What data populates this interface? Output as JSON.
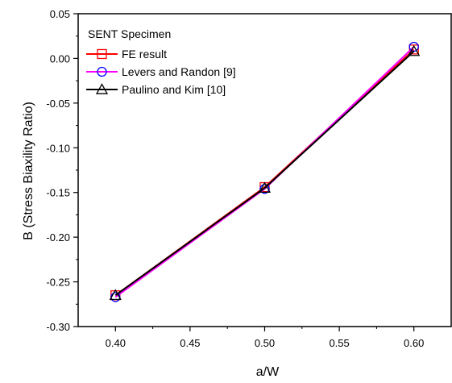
{
  "chart_data": {
    "type": "line",
    "title": "",
    "xlabel": "a/W",
    "ylabel": "B (Stress Biaxility Ratio)",
    "xlim": [
      0.375,
      0.625
    ],
    "ylim": [
      -0.3,
      0.05
    ],
    "xticks": [
      0.4,
      0.45,
      0.5,
      0.55,
      0.6
    ],
    "xtick_labels": [
      "0.40",
      "0.45",
      "0.50",
      "0.55",
      "0.60"
    ],
    "yticks": [
      0.05,
      0.0,
      -0.05,
      -0.1,
      -0.15,
      -0.2,
      -0.25,
      -0.3
    ],
    "ytick_labels": [
      "0.05",
      "0.00",
      "-0.05",
      "-0.10",
      "-0.15",
      "-0.20",
      "-0.25",
      "-0.30"
    ],
    "grid": false,
    "legend": {
      "title": "SENT Specimen",
      "position": "top-left"
    },
    "x": [
      0.4,
      0.5,
      0.6
    ],
    "series": [
      {
        "name": "FE result",
        "values": [
          -0.265,
          -0.144,
          0.01
        ],
        "color": "#ff0000",
        "marker": "square"
      },
      {
        "name": "Levers and Randon [9]",
        "values": [
          -0.267,
          -0.146,
          0.013
        ],
        "color": "#ff00ff",
        "marker": "circle",
        "marker_color": "#0000ff"
      },
      {
        "name": "Paulino and Kim [10]",
        "values": [
          -0.265,
          -0.145,
          0.008
        ],
        "color": "#000000",
        "marker": "triangle"
      }
    ]
  }
}
